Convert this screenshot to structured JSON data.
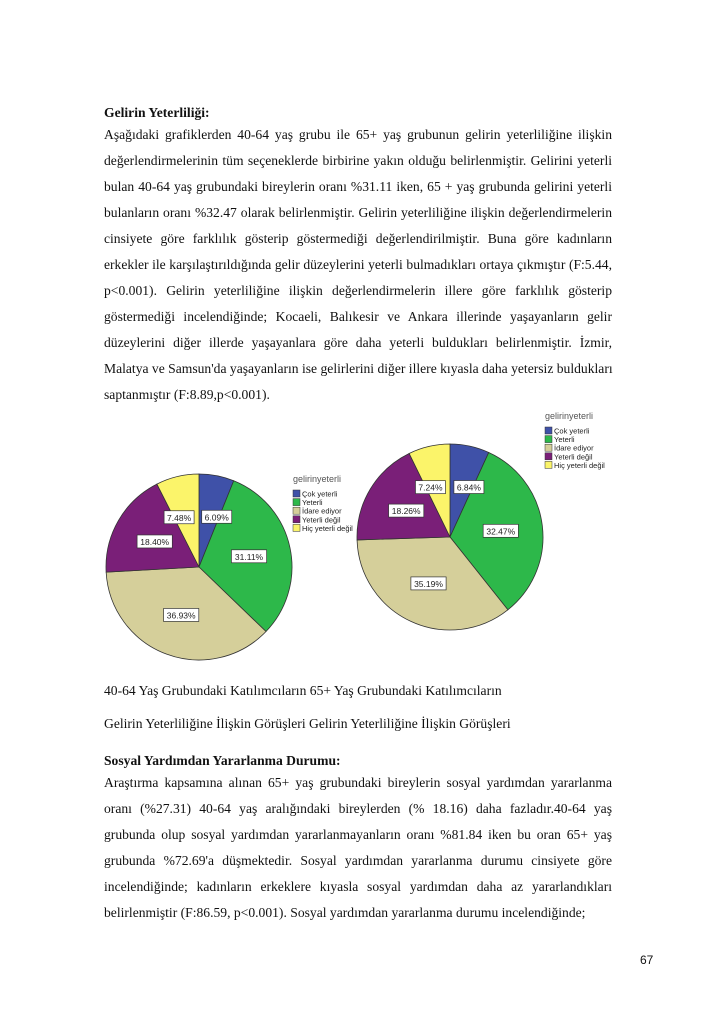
{
  "section1": {
    "heading": "Gelirin Yeterliliği:",
    "lines": [
      "Aşağıdaki grafiklerden 40-64 yaş grubu ile 65+ yaş grubunun gelirin yeterliliğine ilişkin",
      "değerlendirmelerinin tüm seçeneklerde birbirine yakın olduğu belirlenmiştir. Gelirini yeterli",
      "bulan 40-64 yaş grubundaki bireylerin oranı %31.11 iken, 65 + yaş grubunda gelirini yeterli",
      "bulanların oranı %32.47 olarak belirlenmiştir. Gelirin yeterliliğine ilişkin değerlendirmelerin",
      "cinsiyete göre farklılık gösterip göstermediği değerlendirilmiştir. Buna göre kadınların",
      "erkekler ile karşılaştırıldığında gelir düzeylerini yeterli bulmadıkları ortaya çıkmıştır (F:5.44,",
      "p<0.001). Gelirin yeterliliğine ilişkin değerlendirmelerin illere göre farklılık gösterip",
      "göstermediği incelendiğinde; Kocaeli, Balıkesir ve Ankara illerinde yaşayanların gelir",
      "düzeylerini diğer illerde yaşayanlara göre daha yeterli buldukları belirlenmiştir. İzmir,",
      "Malatya ve Samsun'da yaşayanların ise gelirlerini diğer illere kıyasla daha yetersiz buldukları",
      "saptanmıştır (F:8.89,p<0.001)."
    ]
  },
  "chart_data": [
    {
      "type": "pie",
      "title": "gelirinyeterli",
      "categories": [
        "Çok yeterli",
        "Yeterli",
        "İdare ediyor",
        "Yeterli değil",
        "Hiç yeterli değil"
      ],
      "values": [
        6.09,
        31.11,
        36.93,
        18.4,
        7.48
      ],
      "labels": [
        "6.09%",
        "31.11%",
        "36.93%",
        "18.40%",
        "7.48%"
      ],
      "colors": [
        "#3f51a8",
        "#2db84a",
        "#d5cf9a",
        "#7a1f78",
        "#fbf46a"
      ],
      "legend": "right"
    },
    {
      "type": "pie",
      "title": "gelirinyeterli",
      "categories": [
        "Çok yeterli",
        "Yeterli",
        "İdare ediyor",
        "Yeterli değil",
        "Hiç yeterli değil"
      ],
      "values": [
        6.84,
        32.47,
        35.19,
        18.26,
        7.24
      ],
      "labels": [
        "6.84%",
        "32.47%",
        "35.19%",
        "18.26%",
        "7.24%"
      ],
      "colors": [
        "#3f51a8",
        "#2db84a",
        "#d5cf9a",
        "#7a1f78",
        "#fbf46a"
      ],
      "legend": "top-right"
    }
  ],
  "captions": {
    "line1": "40-64 Yaş Grubundaki Katılımcıların 65+ Yaş Grubundaki Katılımcıların",
    "line2": "Gelirin Yeterliliğine İlişkin Görüşleri Gelirin Yeterliliğine İlişkin Görüşleri"
  },
  "section2": {
    "heading": "Sosyal Yardımdan Yararlanma Durumu:",
    "lines": [
      "Araştırma kapsamına alınan 65+ yaş grubundaki bireylerin sosyal yardımdan yararlanma",
      "oranı (%27.31)  40-64 yaş aralığındaki bireylerden (% 18.16) daha fazladır.40-64 yaş",
      "grubunda olup sosyal yardımdan yararlanmayanların oranı %81.84 iken bu oran 65+ yaş",
      "grubunda %72.69'a düşmektedir. Sosyal yardımdan yararlanma durumu cinsiyete göre",
      "incelendiğinde; kadınların erkeklere kıyasla sosyal yardımdan daha az yararlandıkları",
      "belirlenmiştir (F:86.59, p<0.001). Sosyal yardımdan yararlanma durumu incelendiğinde;"
    ]
  },
  "page_number": "67"
}
